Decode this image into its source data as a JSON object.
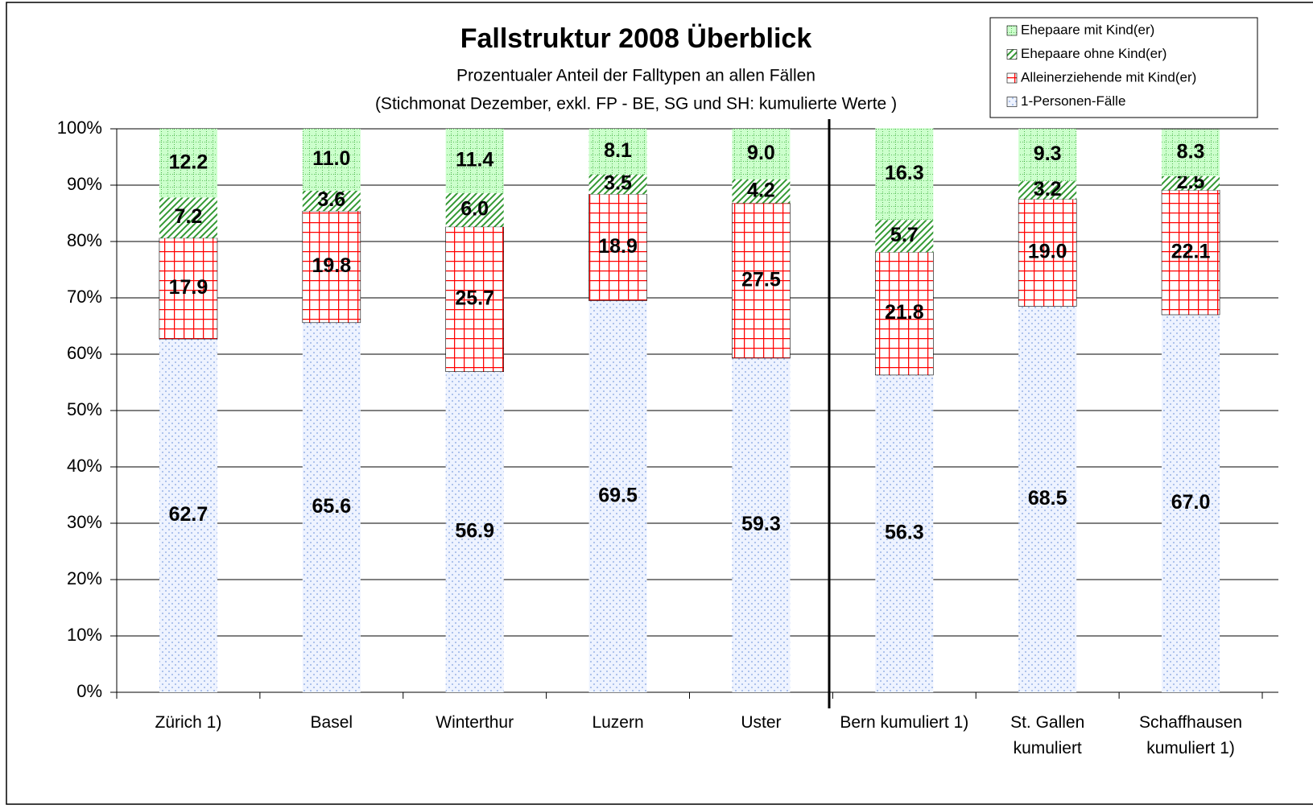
{
  "chart_data": {
    "type": "stacked_bar",
    "title": "Fallstruktur 2008 Überblick",
    "subtitle": [
      "Prozentualer Anteil der Falltypen an allen Fällen",
      "(Stichmonat Dezember, exkl. FP -  BE, SG und SH: kumulierte Werte )"
    ],
    "categories": [
      "Zürich 1)",
      "Basel",
      "Winterthur",
      "Luzern",
      "Uster",
      "Bern kumuliert 1)",
      "St. Gallen kumuliert",
      "Schaffhausen kumuliert 1)"
    ],
    "series": [
      {
        "name": "1-Personen-Fälle",
        "color": "#7f9fdf",
        "pattern": "dots",
        "values": [
          62.7,
          65.6,
          56.9,
          69.5,
          59.3,
          56.3,
          68.5,
          67.0
        ],
        "value_labels": [
          "62.7",
          "65.6",
          "56.9",
          "69.5",
          "59.3",
          "56.3",
          "68.5",
          "67.0"
        ]
      },
      {
        "name": "Alleinerziehende mit Kind(er)",
        "color": "#ff0000",
        "pattern": "grid",
        "values": [
          17.9,
          19.8,
          25.7,
          18.9,
          27.5,
          21.8,
          19.0,
          22.1
        ],
        "value_labels": [
          "17.9",
          "19.8",
          "25.7",
          "18.9",
          "27.5",
          "21.8",
          "19.0",
          "22.1"
        ]
      },
      {
        "name": "Ehepaare ohne Kind(er)",
        "color": "#339933",
        "pattern": "hatch",
        "values": [
          7.2,
          3.6,
          6.0,
          3.5,
          4.2,
          5.7,
          3.2,
          2.5
        ],
        "value_labels": [
          "7.2",
          "3.6",
          "6.0",
          "3.5",
          "4.2",
          "5.7",
          "3.2",
          "2.5"
        ]
      },
      {
        "name": "Ehepaare mit Kind(er)",
        "color": "#ccffcc",
        "pattern": "lightdots",
        "values": [
          12.2,
          11.0,
          11.4,
          8.1,
          9.0,
          16.3,
          9.3,
          8.3
        ],
        "value_labels": [
          "12.2",
          "11.0",
          "11.4",
          "8.1",
          "9.0",
          "16.3",
          "9.3",
          "8.3"
        ]
      }
    ],
    "ylim": [
      0,
      100
    ],
    "yticks": [
      {
        "value": 0,
        "label": "0%"
      },
      {
        "value": 10,
        "label": "10%"
      },
      {
        "value": 20,
        "label": "20%"
      },
      {
        "value": 30,
        "label": "30%"
      },
      {
        "value": 40,
        "label": "40%"
      },
      {
        "value": 50,
        "label": "50%"
      },
      {
        "value": 60,
        "label": "60%"
      },
      {
        "value": 70,
        "label": "70%"
      },
      {
        "value": 80,
        "label": "80%"
      },
      {
        "value": 90,
        "label": "90%"
      },
      {
        "value": 100,
        "label": "100%"
      }
    ],
    "grid": true,
    "legend": "top-right"
  }
}
